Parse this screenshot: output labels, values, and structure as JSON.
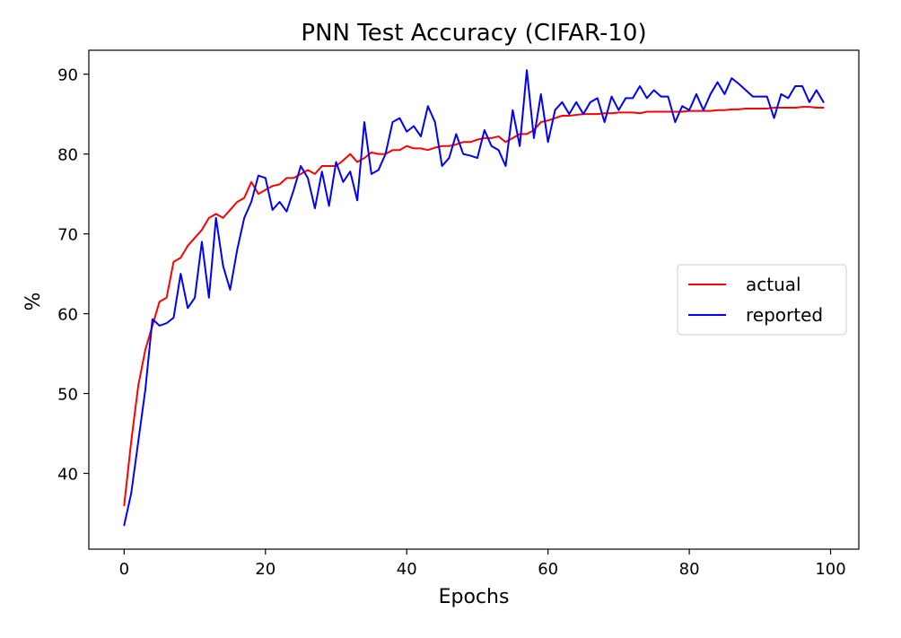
{
  "chart_data": {
    "type": "line",
    "title": "PNN Test Accuracy (CIFAR-10)",
    "xlabel": "Epochs",
    "ylabel": "%",
    "xlim": [
      -5,
      104
    ],
    "ylim": [
      30.5,
      93
    ],
    "xticks": [
      0,
      20,
      40,
      60,
      80,
      100
    ],
    "yticks": [
      40,
      50,
      60,
      70,
      80,
      90
    ],
    "grid": false,
    "legend_position": "center-right",
    "series": [
      {
        "name": "actual",
        "color": "#ff0000",
        "values": [
          36.0,
          44.0,
          51.0,
          55.5,
          58.5,
          61.5,
          62.0,
          66.5,
          67.0,
          68.5,
          69.5,
          70.5,
          72.0,
          72.5,
          72.0,
          73.0,
          74.0,
          74.5,
          76.5,
          75.0,
          75.5,
          76.0,
          76.2,
          77.0,
          77.0,
          77.5,
          78.0,
          77.5,
          78.5,
          78.5,
          78.5,
          79.2,
          80.0,
          79.0,
          79.5,
          80.2,
          80.0,
          80.0,
          80.5,
          80.5,
          81.0,
          80.7,
          80.7,
          80.5,
          80.8,
          81.0,
          81.0,
          81.2,
          81.5,
          81.5,
          81.8,
          82.0,
          82.0,
          82.2,
          81.5,
          82.0,
          82.5,
          82.5,
          83.0,
          84.0,
          84.2,
          84.5,
          84.8,
          84.8,
          84.9,
          85.0,
          85.0,
          85.0,
          85.1,
          85.1,
          85.2,
          85.2,
          85.2,
          85.1,
          85.3,
          85.3,
          85.3,
          85.3,
          85.3,
          85.3,
          85.4,
          85.4,
          85.4,
          85.4,
          85.5,
          85.5,
          85.6,
          85.6,
          85.7,
          85.7,
          85.7,
          85.7,
          85.8,
          85.8,
          85.8,
          85.8,
          85.9,
          85.9,
          85.8,
          85.8
        ]
      },
      {
        "name": "reported",
        "color": "#0000ff",
        "values": [
          33.5,
          37.5,
          44.0,
          50.5,
          59.3,
          58.5,
          58.8,
          59.5,
          65.0,
          60.7,
          62.0,
          69.0,
          62.0,
          72.0,
          66.0,
          63.0,
          68.0,
          72.0,
          74.0,
          77.3,
          77.0,
          73.0,
          74.0,
          72.8,
          75.5,
          78.5,
          77.0,
          73.2,
          77.8,
          73.5,
          79.0,
          76.5,
          77.8,
          74.2,
          84.0,
          77.5,
          78.0,
          80.0,
          84.0,
          84.5,
          82.8,
          83.5,
          82.2,
          86.0,
          84.0,
          78.5,
          79.5,
          82.5,
          80.0,
          79.8,
          79.5,
          83.0,
          81.0,
          80.5,
          78.5,
          85.5,
          81.0,
          90.5,
          82.0,
          87.5,
          81.5,
          85.5,
          86.5,
          85.0,
          86.5,
          85.0,
          86.5,
          87.0,
          84.0,
          87.2,
          85.5,
          87.0,
          87.0,
          88.5,
          87.0,
          88.0,
          87.2,
          87.2,
          84.0,
          86.0,
          85.5,
          87.5,
          85.5,
          87.5,
          89.0,
          87.5,
          89.5,
          88.8,
          88.0,
          87.2,
          87.2,
          87.2,
          84.5,
          87.5,
          87.0,
          88.5,
          88.5,
          86.5,
          88.0,
          86.5
        ]
      }
    ]
  }
}
